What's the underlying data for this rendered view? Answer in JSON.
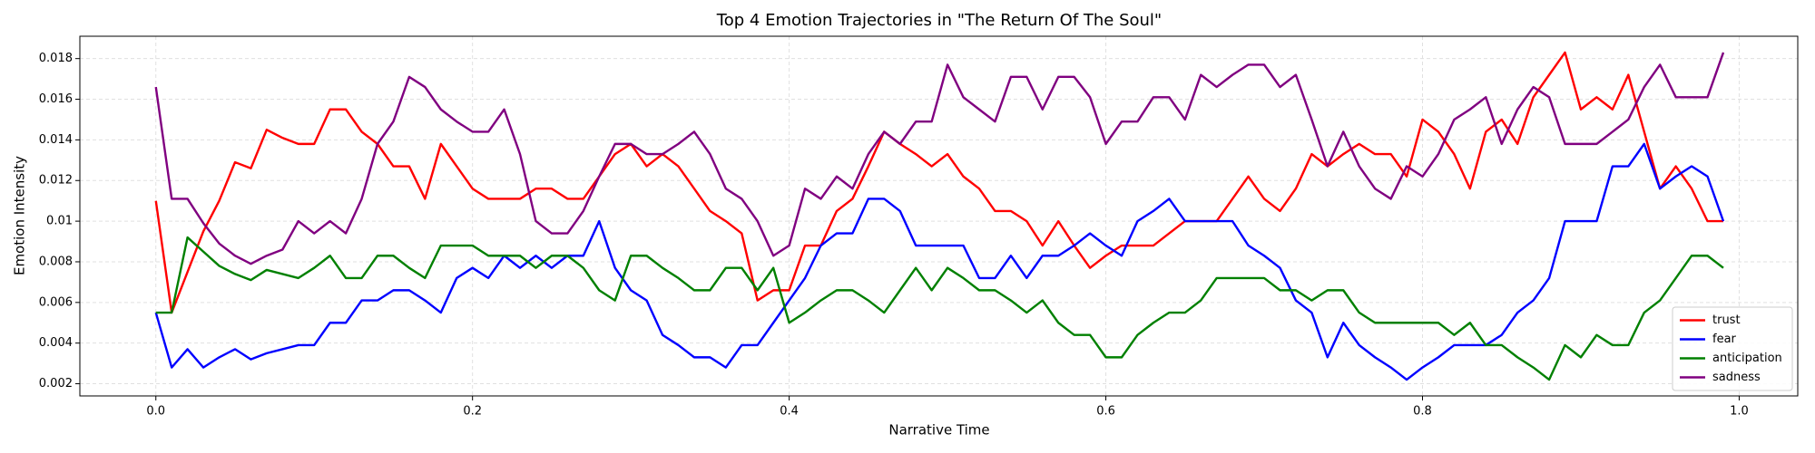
{
  "chart_data": {
    "type": "line",
    "title": "Top 4 Emotion Trajectories in \"The Return Of The Soul\"",
    "x_label": "Narrative Time",
    "y_label": "Emotion Intensity",
    "x": [
      0,
      0.01,
      0.02,
      0.03,
      0.04,
      0.05,
      0.06,
      0.07,
      0.08,
      0.09,
      0.1,
      0.11,
      0.12,
      0.13,
      0.14,
      0.15,
      0.16,
      0.17,
      0.18,
      0.19,
      0.2,
      0.21,
      0.22,
      0.23,
      0.24,
      0.25,
      0.26,
      0.27,
      0.28,
      0.29,
      0.3,
      0.31,
      0.32,
      0.33,
      0.34,
      0.35,
      0.36,
      0.37,
      0.38,
      0.39,
      0.4,
      0.41,
      0.42,
      0.43,
      0.44,
      0.45,
      0.46,
      0.47,
      0.48,
      0.49,
      0.5,
      0.51,
      0.52,
      0.53,
      0.54,
      0.55,
      0.56,
      0.57,
      0.58,
      0.59,
      0.6,
      0.61,
      0.62,
      0.63,
      0.64,
      0.65,
      0.66,
      0.67,
      0.68,
      0.69,
      0.7,
      0.71,
      0.72,
      0.73,
      0.74,
      0.75,
      0.76,
      0.77,
      0.78,
      0.79,
      0.8,
      0.81,
      0.82,
      0.83,
      0.84,
      0.85,
      0.86,
      0.87,
      0.88,
      0.89,
      0.9,
      0.91,
      0.92,
      0.93,
      0.94,
      0.95,
      0.96,
      0.97,
      0.98,
      0.99
    ],
    "series": [
      {
        "name": "trust",
        "color": "#ff0000",
        "values": [
          0.011,
          0.0055,
          0.0075,
          0.0095,
          0.011,
          0.0129,
          0.0126,
          0.0145,
          0.0141,
          0.0138,
          0.0138,
          0.0155,
          0.0155,
          0.0144,
          0.0138,
          0.0127,
          0.0127,
          0.0111,
          0.0138,
          0.0127,
          0.0116,
          0.0111,
          0.0111,
          0.0111,
          0.0116,
          0.0116,
          0.0111,
          0.0111,
          0.0122,
          0.0133,
          0.0138,
          0.0127,
          0.0133,
          0.0127,
          0.0116,
          0.0105,
          0.01,
          0.0094,
          0.0061,
          0.0066,
          0.0066,
          0.0088,
          0.0088,
          0.0105,
          0.0111,
          0.0127,
          0.0144,
          0.0138,
          0.0133,
          0.0127,
          0.0133,
          0.0122,
          0.0116,
          0.0105,
          0.0105,
          0.01,
          0.0088,
          0.01,
          0.0088,
          0.0077,
          0.0083,
          0.0088,
          0.0088,
          0.0088,
          0.0094,
          0.01,
          0.01,
          0.01,
          0.0111,
          0.0122,
          0.0111,
          0.0105,
          0.0116,
          0.0133,
          0.0127,
          0.0133,
          0.0138,
          0.0133,
          0.0133,
          0.0122,
          0.015,
          0.0144,
          0.0133,
          0.0116,
          0.0144,
          0.015,
          0.0138,
          0.0161,
          0.0172,
          0.0183,
          0.0155,
          0.0161,
          0.0155,
          0.0172,
          0.0144,
          0.0116,
          0.0127,
          0.0116,
          0.01,
          0.01
        ]
      },
      {
        "name": "fear",
        "color": "#0000ff",
        "values": [
          0.0055,
          0.0028,
          0.0037,
          0.0028,
          0.0033,
          0.0037,
          0.0032,
          0.0035,
          0.0037,
          0.0039,
          0.0039,
          0.005,
          0.005,
          0.0061,
          0.0061,
          0.0066,
          0.0066,
          0.0061,
          0.0055,
          0.0072,
          0.0077,
          0.0072,
          0.0083,
          0.0077,
          0.0083,
          0.0077,
          0.0083,
          0.0083,
          0.01,
          0.0077,
          0.0066,
          0.0061,
          0.0044,
          0.0039,
          0.0033,
          0.0033,
          0.0028,
          0.0039,
          0.0039,
          0.005,
          0.0061,
          0.0072,
          0.0088,
          0.0094,
          0.0094,
          0.0111,
          0.0111,
          0.0105,
          0.0088,
          0.0088,
          0.0088,
          0.0088,
          0.0072,
          0.0072,
          0.0083,
          0.0072,
          0.0083,
          0.0083,
          0.0088,
          0.0094,
          0.0088,
          0.0083,
          0.01,
          0.0105,
          0.0111,
          0.01,
          0.01,
          0.01,
          0.01,
          0.0088,
          0.0083,
          0.0077,
          0.0061,
          0.0055,
          0.0033,
          0.005,
          0.0039,
          0.0033,
          0.0028,
          0.0022,
          0.0028,
          0.0033,
          0.0039,
          0.0039,
          0.0039,
          0.0044,
          0.0055,
          0.0061,
          0.0072,
          0.01,
          0.01,
          0.01,
          0.0127,
          0.0127,
          0.0138,
          0.0116,
          0.0122,
          0.0127,
          0.0122,
          0.01
        ]
      },
      {
        "name": "anticipation",
        "color": "#008000",
        "values": [
          0.0055,
          0.0055,
          0.0092,
          0.0085,
          0.0078,
          0.0074,
          0.0071,
          0.0076,
          0.0074,
          0.0072,
          0.0077,
          0.0083,
          0.0072,
          0.0072,
          0.0083,
          0.0083,
          0.0077,
          0.0072,
          0.0088,
          0.0088,
          0.0088,
          0.0083,
          0.0083,
          0.0083,
          0.0077,
          0.0083,
          0.0083,
          0.0077,
          0.0066,
          0.0061,
          0.0083,
          0.0083,
          0.0077,
          0.0072,
          0.0066,
          0.0066,
          0.0077,
          0.0077,
          0.0066,
          0.0077,
          0.005,
          0.0055,
          0.0061,
          0.0066,
          0.0066,
          0.0061,
          0.0055,
          0.0066,
          0.0077,
          0.0066,
          0.0077,
          0.0072,
          0.0066,
          0.0066,
          0.0061,
          0.0055,
          0.0061,
          0.005,
          0.0044,
          0.0044,
          0.0033,
          0.0033,
          0.0044,
          0.005,
          0.0055,
          0.0055,
          0.0061,
          0.0072,
          0.0072,
          0.0072,
          0.0072,
          0.0066,
          0.0066,
          0.0061,
          0.0066,
          0.0066,
          0.0055,
          0.005,
          0.005,
          0.005,
          0.005,
          0.005,
          0.0044,
          0.005,
          0.0039,
          0.0039,
          0.0033,
          0.0028,
          0.0022,
          0.0039,
          0.0033,
          0.0044,
          0.0039,
          0.0039,
          0.0055,
          0.0061,
          0.0072,
          0.0083,
          0.0083,
          0.0077
        ]
      },
      {
        "name": "sadness",
        "color": "#800080",
        "values": [
          0.0166,
          0.0111,
          0.0111,
          0.0099,
          0.0089,
          0.0083,
          0.0079,
          0.0083,
          0.0086,
          0.01,
          0.0094,
          0.01,
          0.0094,
          0.0111,
          0.0138,
          0.0149,
          0.0171,
          0.0166,
          0.0155,
          0.0149,
          0.0144,
          0.0144,
          0.0155,
          0.0133,
          0.01,
          0.0094,
          0.0094,
          0.0105,
          0.0122,
          0.0138,
          0.0138,
          0.0133,
          0.0133,
          0.0138,
          0.0144,
          0.0133,
          0.0116,
          0.0111,
          0.01,
          0.0083,
          0.0088,
          0.0116,
          0.0111,
          0.0122,
          0.0116,
          0.0133,
          0.0144,
          0.0138,
          0.0149,
          0.0149,
          0.0177,
          0.0161,
          0.0155,
          0.0149,
          0.0171,
          0.0171,
          0.0155,
          0.0171,
          0.0171,
          0.0161,
          0.0138,
          0.0149,
          0.0149,
          0.0161,
          0.0161,
          0.015,
          0.0172,
          0.0166,
          0.0172,
          0.0177,
          0.0177,
          0.0166,
          0.0172,
          0.015,
          0.0127,
          0.0144,
          0.0127,
          0.0116,
          0.0111,
          0.0127,
          0.0122,
          0.0133,
          0.015,
          0.0155,
          0.0161,
          0.0138,
          0.0155,
          0.0166,
          0.0161,
          0.0138,
          0.0138,
          0.0138,
          0.0144,
          0.015,
          0.0166,
          0.0177,
          0.0161,
          0.0161,
          0.0161,
          0.0183
        ]
      }
    ],
    "xlim": [
      -0.048,
      1.037
    ],
    "ylim": [
      0.0014,
      0.0191
    ],
    "xticks": [
      {
        "value": 0,
        "label": "0.0"
      },
      0.2,
      0.4,
      0.6,
      0.8,
      {
        "value": 1,
        "label": "1.0"
      }
    ],
    "yticks": [
      0.002,
      0.004,
      0.006,
      0.008,
      0.01,
      0.012,
      0.014,
      0.016,
      0.018
    ],
    "grid": true,
    "legend": "lower right"
  }
}
